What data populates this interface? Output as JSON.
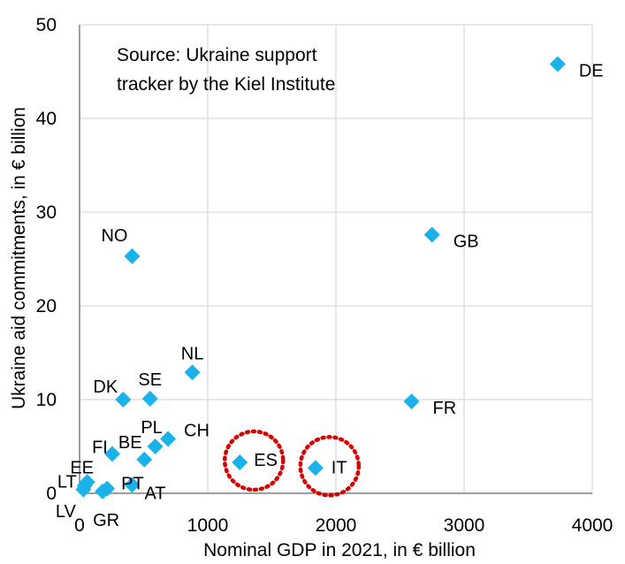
{
  "chart_data": {
    "type": "scatter",
    "title": "",
    "xlabel": "Nominal GDP in 2021, in € billion",
    "ylabel": "Ukraine aid commitments, in € billion",
    "xlim": [
      0,
      4000
    ],
    "ylim": [
      0,
      50
    ],
    "xticks": [
      0,
      1000,
      2000,
      3000,
      4000
    ],
    "yticks": [
      0,
      10,
      20,
      30,
      40,
      50
    ],
    "grid": true,
    "marker": "diamond",
    "marker_color": "#19b3ea",
    "highlight_color": "#d40000",
    "note_lines": [
      "Source: Ukraine support",
      "tracker by the Kiel Institute"
    ],
    "points": [
      {
        "label": "DE",
        "x": 3730,
        "y": 45.8
      },
      {
        "label": "GB",
        "x": 2750,
        "y": 27.6
      },
      {
        "label": "NO",
        "x": 410,
        "y": 25.3
      },
      {
        "label": "NL",
        "x": 880,
        "y": 12.9
      },
      {
        "label": "DK",
        "x": 340,
        "y": 10.0
      },
      {
        "label": "SE",
        "x": 550,
        "y": 10.1
      },
      {
        "label": "FR",
        "x": 2590,
        "y": 9.8
      },
      {
        "label": "CH",
        "x": 690,
        "y": 5.8
      },
      {
        "label": "PL",
        "x": 590,
        "y": 5.0
      },
      {
        "label": "FI",
        "x": 255,
        "y": 4.2
      },
      {
        "label": "BE",
        "x": 505,
        "y": 3.6
      },
      {
        "label": "ES",
        "x": 1250,
        "y": 3.3
      },
      {
        "label": "IT",
        "x": 1840,
        "y": 2.7
      },
      {
        "label": "EE",
        "x": 60,
        "y": 1.2
      },
      {
        "label": "LT",
        "x": 40,
        "y": 0.8
      },
      {
        "label": "PT",
        "x": 215,
        "y": 0.5
      },
      {
        "label": "AT",
        "x": 410,
        "y": 0.9
      },
      {
        "label": "LV",
        "x": 30,
        "y": 0.4
      },
      {
        "label": "GR",
        "x": 180,
        "y": 0.2
      }
    ],
    "highlighted": [
      "ES",
      "IT"
    ]
  }
}
